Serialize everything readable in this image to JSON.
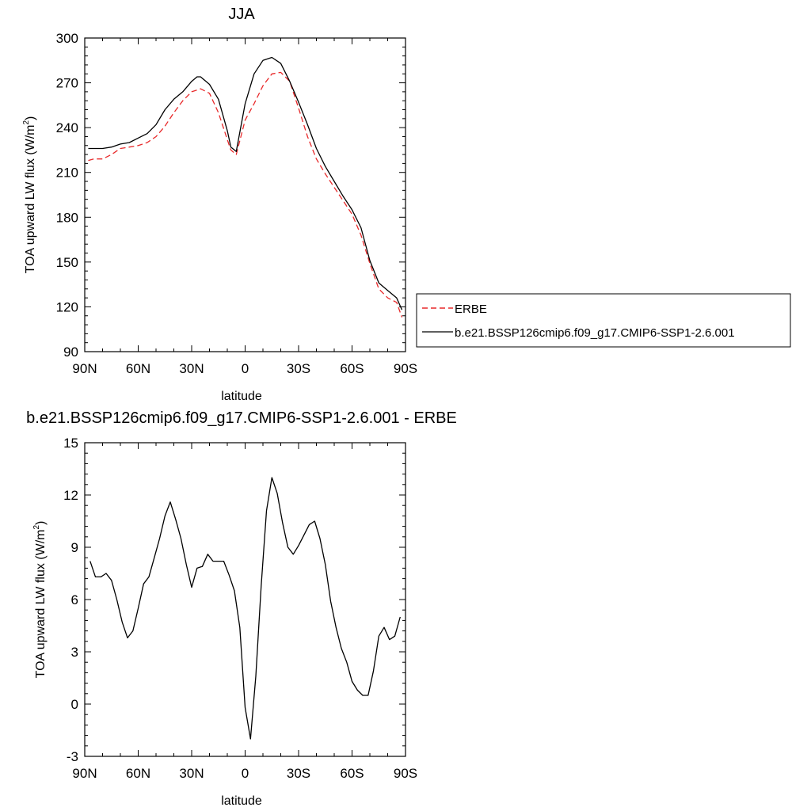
{
  "chart_data": [
    {
      "type": "line",
      "title": "JJA",
      "xlabel": "latitude",
      "ylabel": "TOA upward LW flux (W/m",
      "ylabel_sup": "2",
      "ylabel_close": ")",
      "xlim": [
        90,
        -90
      ],
      "ylim": [
        90,
        300
      ],
      "xticks": [
        90,
        60,
        30,
        0,
        -30,
        -60,
        -90
      ],
      "xtick_labels": [
        "90N",
        "60N",
        "30N",
        "0",
        "30S",
        "60S",
        "90S"
      ],
      "yticks": [
        90,
        120,
        150,
        180,
        210,
        240,
        270,
        300
      ],
      "ytick_labels": [
        "90",
        "120",
        "150",
        "180",
        "210",
        "240",
        "270",
        "300"
      ],
      "grid": false,
      "legend_position": "right",
      "series": [
        {
          "name": "ERBE",
          "color": "#e8292a",
          "style": "dashed",
          "x": [
            88,
            85,
            80,
            75,
            70,
            65,
            60,
            55,
            50,
            45,
            40,
            35,
            30,
            25,
            20,
            15,
            10,
            8,
            5,
            0,
            -5,
            -10,
            -15,
            -20,
            -25,
            -30,
            -35,
            -40,
            -45,
            -50,
            -55,
            -60,
            -65,
            -70,
            -75,
            -80,
            -85,
            -88
          ],
          "values": [
            218,
            219,
            219,
            222,
            226,
            227,
            228,
            230,
            234,
            241,
            250,
            258,
            264,
            266,
            263,
            250,
            232,
            225,
            222,
            245,
            256,
            268,
            276,
            277,
            271,
            253,
            234,
            219,
            209,
            200,
            191,
            182,
            168,
            149,
            132,
            126,
            123,
            113
          ]
        },
        {
          "name": "b.e21.BSSP126cmip6.f09_g17.CMIP6-SSP1-2.6.001",
          "color": "#000000",
          "style": "solid",
          "x": [
            88,
            85,
            80,
            75,
            70,
            65,
            60,
            55,
            50,
            45,
            40,
            35,
            30,
            27,
            25,
            20,
            15,
            10,
            8,
            5,
            0,
            -5,
            -10,
            -15,
            -20,
            -25,
            -30,
            -35,
            -40,
            -45,
            -50,
            -55,
            -60,
            -65,
            -70,
            -75,
            -80,
            -85,
            -88
          ],
          "values": [
            226,
            226,
            226,
            227,
            229,
            230,
            233,
            236,
            242,
            252,
            259,
            264,
            271,
            274,
            274,
            269,
            259,
            238,
            227,
            224,
            256,
            276,
            285,
            287,
            283,
            271,
            257,
            242,
            226,
            214,
            204,
            194,
            185,
            173,
            151,
            136,
            131,
            126,
            118
          ]
        }
      ]
    },
    {
      "type": "line",
      "title": "b.e21.BSSP126cmip6.f09_g17.CMIP6-SSP1-2.6.001 - ERBE",
      "xlabel": "latitude",
      "ylabel": "TOA upward LW flux (W/m",
      "ylabel_sup": "2",
      "ylabel_close": ")",
      "xlim": [
        90,
        -90
      ],
      "ylim": [
        -3,
        15
      ],
      "xticks": [
        90,
        60,
        30,
        0,
        -30,
        -60,
        -90
      ],
      "xtick_labels": [
        "90N",
        "60N",
        "30N",
        "0",
        "30S",
        "60S",
        "90S"
      ],
      "yticks": [
        -3,
        0,
        3,
        6,
        9,
        12,
        15
      ],
      "ytick_labels": [
        "-3",
        "0",
        "3",
        "6",
        "9",
        "12",
        "15"
      ],
      "grid": false,
      "series": [
        {
          "color": "#000000",
          "style": "solid",
          "x": [
            87,
            84,
            81,
            78,
            75,
            72,
            69,
            66,
            63,
            60,
            57,
            54,
            51,
            48,
            45,
            42,
            39,
            36,
            33,
            30,
            27,
            24,
            21,
            18,
            15,
            12,
            9,
            6,
            3,
            0,
            -3,
            -6,
            -9,
            -12,
            -15,
            -18,
            -21,
            -24,
            -27,
            -30,
            -33,
            -36,
            -39,
            -42,
            -45,
            -48,
            -51,
            -54,
            -57,
            -60,
            -63,
            -66,
            -69,
            -72,
            -75,
            -78,
            -81,
            -84,
            -87
          ],
          "values": [
            8.2,
            7.3,
            7.3,
            7.5,
            7.1,
            6.0,
            4.7,
            3.8,
            4.2,
            5.5,
            6.9,
            7.3,
            8.4,
            9.5,
            10.8,
            11.6,
            10.6,
            9.5,
            8.0,
            6.7,
            7.8,
            7.9,
            8.6,
            8.2,
            8.2,
            8.2,
            7.4,
            6.5,
            4.4,
            -0.2,
            -2.0,
            1.6,
            6.8,
            11.1,
            13.0,
            12.1,
            10.4,
            9.0,
            8.6,
            9.1,
            9.7,
            10.3,
            10.5,
            9.5,
            8.0,
            5.9,
            4.4,
            3.2,
            2.4,
            1.3,
            0.8,
            0.5,
            0.5,
            1.9,
            3.9,
            4.4,
            3.7,
            3.9,
            5.0
          ]
        }
      ]
    }
  ]
}
